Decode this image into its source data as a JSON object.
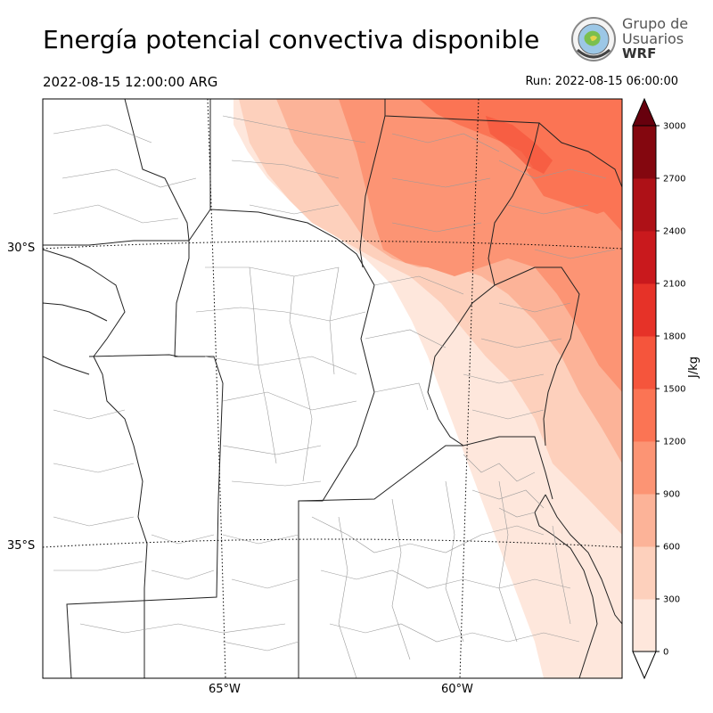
{
  "title": "Energía potencial convectiva disponible",
  "valid_time": "2022-08-15 12:00:00 ARG",
  "run_time": "Run: 2022-08-15 06:00:00",
  "logo": {
    "line1": "Grupo de",
    "line2": "Usuarios",
    "line3": "WRF"
  },
  "gridlines": {
    "lat": [
      {
        "label": "30°S"
      },
      {
        "label": "35°S"
      }
    ],
    "lon": [
      {
        "label": "65°W"
      },
      {
        "label": "60°W"
      }
    ]
  },
  "colorbar": {
    "unit": "J/kg",
    "levels": [
      0,
      300,
      600,
      900,
      1200,
      1500,
      1800,
      2100,
      2400,
      2700,
      3000
    ],
    "tick_labels": [
      "0",
      "300",
      "600",
      "900",
      "1200",
      "1500",
      "1800",
      "2100",
      "2400",
      "2700",
      "3000"
    ],
    "colors": [
      "#fee7dc",
      "#fdd0bc",
      "#fcb398",
      "#fc9474",
      "#fb7454",
      "#f5553c",
      "#e63228",
      "#c9191d",
      "#ae1117",
      "#84070f"
    ],
    "extend_color": "#67000d"
  }
}
